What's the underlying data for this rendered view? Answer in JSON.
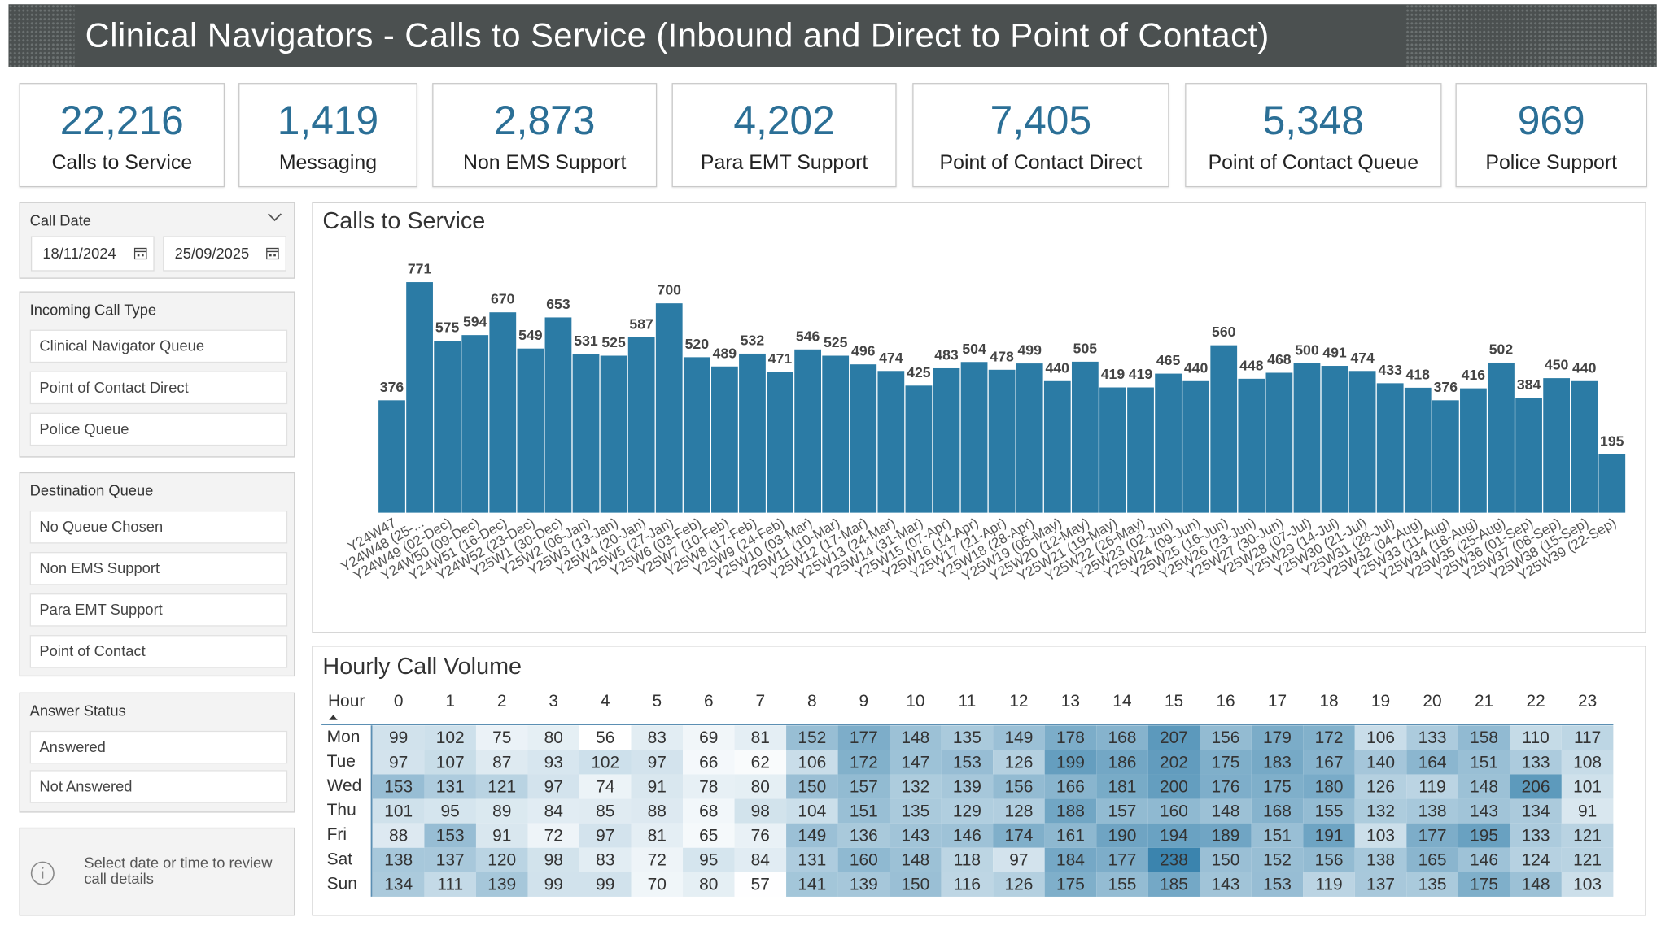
{
  "header": {
    "title": "Clinical Navigators - Calls to Service (Inbound and Direct to Point of Contact)"
  },
  "kpis": [
    {
      "value": "22,216",
      "label": "Calls to Service"
    },
    {
      "value": "1,419",
      "label": "Messaging"
    },
    {
      "value": "2,873",
      "label": "Non EMS Support"
    },
    {
      "value": "4,202",
      "label": "Para EMT Support"
    },
    {
      "value": "7,405",
      "label": "Point of Contact Direct"
    },
    {
      "value": "5,348",
      "label": "Point of Contact Queue"
    },
    {
      "value": "969",
      "label": "Police Support"
    }
  ],
  "filters": {
    "call_date": {
      "title": "Call Date",
      "start": "18/11/2024",
      "end": "25/09/2025"
    },
    "incoming_call_type": {
      "title": "Incoming Call Type",
      "items": [
        "Clinical Navigator Queue",
        "Point of Contact Direct",
        "Police Queue"
      ]
    },
    "destination_queue": {
      "title": "Destination Queue",
      "items": [
        "No Queue Chosen",
        "Non EMS Support",
        "Para EMT Support",
        "Point of Contact"
      ]
    },
    "answer_status": {
      "title": "Answer Status",
      "items": [
        "Answered",
        "Not Answered"
      ]
    }
  },
  "note": "Select date or time to review call details",
  "chart_data": [
    {
      "type": "bar",
      "title": "Calls to Service",
      "categories": [
        "Y24W47",
        "Y24W48 (25-...",
        "Y24W49 (02-Dec)",
        "Y24W50 (09-Dec)",
        "Y24W51 (16-Dec)",
        "Y24W52 (23-Dec)",
        "Y25W1 (30-Dec)",
        "Y25W2 (06-Jan)",
        "Y25W3 (13-Jan)",
        "Y25W4 (20-Jan)",
        "Y25W5 (27-Jan)",
        "Y25W6 (03-Feb)",
        "Y25W7 (10-Feb)",
        "Y25W8 (17-Feb)",
        "Y25W9 (24-Feb)",
        "Y25W10 (03-Mar)",
        "Y25W11 (10-Mar)",
        "Y25W12 (17-Mar)",
        "Y25W13 (24-Mar)",
        "Y25W14 (31-Mar)",
        "Y25W15 (07-Apr)",
        "Y25W16 (14-Apr)",
        "Y25W17 (21-Apr)",
        "Y25W18 (28-Apr)",
        "Y25W19 (05-May)",
        "Y25W20 (12-May)",
        "Y25W21 (19-May)",
        "Y25W22 (26-May)",
        "Y25W23 (02-Jun)",
        "Y25W24 (09-Jun)",
        "Y25W25 (16-Jun)",
        "Y25W26 (23-Jun)",
        "Y25W27 (30-Jun)",
        "Y25W28 (07-Jul)",
        "Y25W29 (14-Jul)",
        "Y25W30 (21-Jul)",
        "Y25W31 (28-Jul)",
        "Y25W32 (04-Aug)",
        "Y25W33 (11-Aug)",
        "Y25W34 (18-Aug)",
        "Y25W35 (25-Aug)",
        "Y25W36 (01-Sep)",
        "Y25W37 (08-Sep)",
        "Y25W38 (15-Sep)",
        "Y25W39 (22-Sep)"
      ],
      "values": [
        376,
        771,
        575,
        594,
        670,
        549,
        653,
        531,
        525,
        587,
        700,
        520,
        489,
        532,
        471,
        546,
        525,
        496,
        474,
        425,
        483,
        504,
        478,
        499,
        440,
        505,
        419,
        419,
        465,
        440,
        560,
        448,
        468,
        500,
        491,
        474,
        433,
        418,
        376,
        416,
        502,
        384,
        450,
        440,
        195
      ],
      "color": "#2b7ba5",
      "ylim": [
        0,
        900
      ]
    },
    {
      "type": "heatmap",
      "title": "Hourly Call Volume",
      "x_label": "Hour",
      "x": [
        0,
        1,
        2,
        3,
        4,
        5,
        6,
        7,
        8,
        9,
        10,
        11,
        12,
        13,
        14,
        15,
        16,
        17,
        18,
        19,
        20,
        21,
        22,
        23
      ],
      "y": [
        "Mon",
        "Tue",
        "Wed",
        "Thu",
        "Fri",
        "Sat",
        "Sun"
      ],
      "values": [
        [
          99,
          102,
          75,
          80,
          56,
          83,
          69,
          81,
          152,
          177,
          148,
          135,
          149,
          178,
          168,
          207,
          156,
          179,
          172,
          106,
          133,
          158,
          110,
          117
        ],
        [
          97,
          107,
          87,
          93,
          102,
          97,
          66,
          62,
          106,
          172,
          147,
          153,
          126,
          199,
          186,
          202,
          175,
          183,
          167,
          140,
          164,
          151,
          133,
          108
        ],
        [
          153,
          131,
          121,
          97,
          74,
          91,
          78,
          80,
          150,
          157,
          132,
          139,
          156,
          166,
          181,
          200,
          176,
          175,
          180,
          126,
          119,
          148,
          206,
          101
        ],
        [
          101,
          95,
          89,
          84,
          85,
          88,
          68,
          98,
          104,
          151,
          135,
          129,
          128,
          188,
          157,
          160,
          148,
          168,
          155,
          132,
          138,
          143,
          134,
          91
        ],
        [
          88,
          153,
          91,
          72,
          97,
          81,
          65,
          76,
          149,
          136,
          143,
          146,
          174,
          161,
          190,
          194,
          189,
          151,
          191,
          103,
          177,
          195,
          133,
          121
        ],
        [
          138,
          137,
          120,
          98,
          83,
          72,
          95,
          84,
          131,
          160,
          148,
          118,
          97,
          184,
          177,
          238,
          150,
          152,
          156,
          138,
          165,
          146,
          124,
          121
        ],
        [
          134,
          111,
          139,
          99,
          99,
          70,
          80,
          57,
          141,
          139,
          150,
          116,
          126,
          175,
          155,
          185,
          143,
          153,
          119,
          137,
          135,
          175,
          148,
          103
        ]
      ],
      "color_low": "#ffffff",
      "color_high": "#3b84ae"
    }
  ]
}
